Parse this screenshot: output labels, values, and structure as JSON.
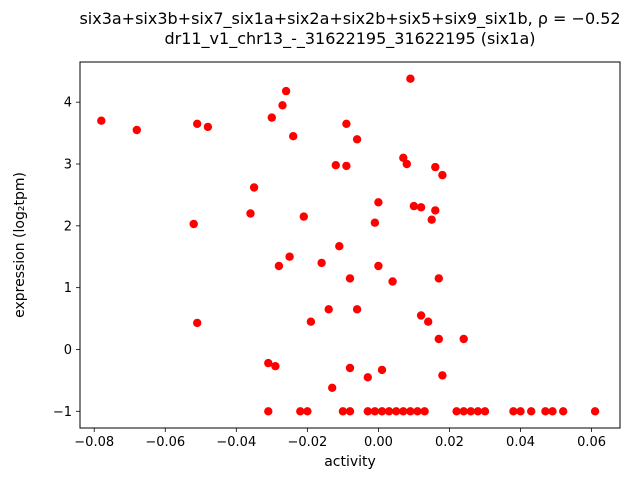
{
  "chart_data": {
    "type": "scatter",
    "title_line1": "six3a+six3b+six7_six1a+six2a+six2b+six5+six9_six1b, ρ = −0.52",
    "title_line2": "dr11_v1_chr13_-_31622195_31622195 (six1a)",
    "correlation_rho": -0.52,
    "xlabel": "activity",
    "ylabel": "expression (log₂tpm)",
    "marker_color": "#ff0000",
    "xlim": [
      -0.084,
      0.068
    ],
    "ylim": [
      -1.27,
      4.65
    ],
    "xticks": [
      -0.08,
      -0.06,
      -0.04,
      -0.02,
      0.0,
      0.02,
      0.04,
      0.06
    ],
    "xtick_labels": [
      "−0.08",
      "−0.06",
      "−0.04",
      "−0.02",
      "0.00",
      "0.02",
      "0.04",
      "0.06"
    ],
    "yticks": [
      -1,
      0,
      1,
      2,
      3,
      4
    ],
    "ytick_labels": [
      "−1",
      "0",
      "1",
      "2",
      "3",
      "4"
    ],
    "grid": false,
    "legend": "none",
    "points": [
      [
        -0.078,
        3.7
      ],
      [
        -0.068,
        3.55
      ],
      [
        -0.051,
        3.65
      ],
      [
        -0.048,
        3.6
      ],
      [
        -0.03,
        3.75
      ],
      [
        -0.027,
        3.95
      ],
      [
        -0.026,
        4.18
      ],
      [
        -0.024,
        3.45
      ],
      [
        -0.009,
        3.65
      ],
      [
        -0.006,
        3.4
      ],
      [
        0.009,
        4.38
      ],
      [
        0.007,
        3.1
      ],
      [
        0.008,
        3.0
      ],
      [
        -0.012,
        2.98
      ],
      [
        -0.009,
        2.97
      ],
      [
        0.016,
        2.95
      ],
      [
        0.018,
        2.82
      ],
      [
        -0.035,
        2.62
      ],
      [
        -0.036,
        2.2
      ],
      [
        -0.021,
        2.15
      ],
      [
        0.0,
        2.38
      ],
      [
        -0.001,
        2.05
      ],
      [
        0.01,
        2.32
      ],
      [
        0.012,
        2.3
      ],
      [
        0.016,
        2.25
      ],
      [
        0.015,
        2.1
      ],
      [
        -0.052,
        2.03
      ],
      [
        -0.025,
        1.5
      ],
      [
        -0.028,
        1.35
      ],
      [
        -0.016,
        1.4
      ],
      [
        -0.011,
        1.67
      ],
      [
        -0.008,
        1.15
      ],
      [
        0.0,
        1.35
      ],
      [
        0.004,
        1.1
      ],
      [
        0.017,
        1.15
      ],
      [
        -0.051,
        0.43
      ],
      [
        -0.019,
        0.45
      ],
      [
        -0.014,
        0.65
      ],
      [
        -0.006,
        0.65
      ],
      [
        0.012,
        0.55
      ],
      [
        0.014,
        0.45
      ],
      [
        0.017,
        0.17
      ],
      [
        0.024,
        0.17
      ],
      [
        -0.031,
        -0.22
      ],
      [
        -0.029,
        -0.27
      ],
      [
        -0.008,
        -0.3
      ],
      [
        -0.003,
        -0.45
      ],
      [
        0.001,
        -0.33
      ],
      [
        0.018,
        -0.42
      ],
      [
        -0.013,
        -0.62
      ],
      [
        -0.031,
        -1.0
      ],
      [
        -0.022,
        -1.0
      ],
      [
        -0.02,
        -1.0
      ],
      [
        -0.01,
        -1.0
      ],
      [
        -0.008,
        -1.0
      ],
      [
        -0.003,
        -1.0
      ],
      [
        -0.001,
        -1.0
      ],
      [
        0.001,
        -1.0
      ],
      [
        0.003,
        -1.0
      ],
      [
        0.005,
        -1.0
      ],
      [
        0.007,
        -1.0
      ],
      [
        0.009,
        -1.0
      ],
      [
        0.011,
        -1.0
      ],
      [
        0.013,
        -1.0
      ],
      [
        0.022,
        -1.0
      ],
      [
        0.024,
        -1.0
      ],
      [
        0.026,
        -1.0
      ],
      [
        0.028,
        -1.0
      ],
      [
        0.03,
        -1.0
      ],
      [
        0.038,
        -1.0
      ],
      [
        0.04,
        -1.0
      ],
      [
        0.043,
        -1.0
      ],
      [
        0.047,
        -1.0
      ],
      [
        0.049,
        -1.0
      ],
      [
        0.052,
        -1.0
      ],
      [
        0.061,
        -1.0
      ]
    ]
  }
}
